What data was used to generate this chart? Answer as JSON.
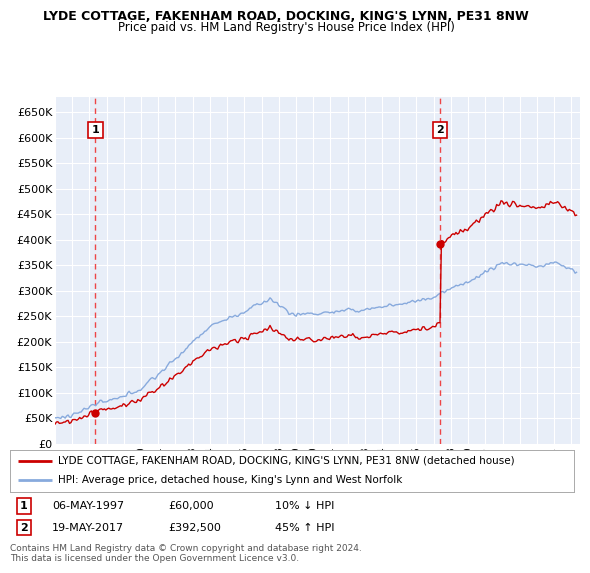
{
  "title1": "LYDE COTTAGE, FAKENHAM ROAD, DOCKING, KING'S LYNN, PE31 8NW",
  "title2": "Price paid vs. HM Land Registry's House Price Index (HPI)",
  "ylabel_ticks": [
    "£0",
    "£50K",
    "£100K",
    "£150K",
    "£200K",
    "£250K",
    "£300K",
    "£350K",
    "£400K",
    "£450K",
    "£500K",
    "£550K",
    "£600K",
    "£650K"
  ],
  "ytick_values": [
    0,
    50000,
    100000,
    150000,
    200000,
    250000,
    300000,
    350000,
    400000,
    450000,
    500000,
    550000,
    600000,
    650000
  ],
  "ylim": [
    0,
    680000
  ],
  "xmin": 1995.0,
  "xmax": 2025.5,
  "sale1_x": 1997.35,
  "sale1_y": 60000,
  "sale1_label": "1",
  "sale1_date": "06-MAY-1997",
  "sale1_price": "£60,000",
  "sale1_hpi": "10% ↓ HPI",
  "sale2_x": 2017.38,
  "sale2_y": 392500,
  "sale2_label": "2",
  "sale2_date": "19-MAY-2017",
  "sale2_price": "£392,500",
  "sale2_hpi": "45% ↑ HPI",
  "bg_color": "#ffffff",
  "plot_bg": "#e8eef8",
  "red_line_color": "#cc0000",
  "blue_line_color": "#88aadd",
  "vline_color": "#ee3333",
  "grid_color": "#ffffff",
  "legend_label1": "LYDE COTTAGE, FAKENHAM ROAD, DOCKING, KING'S LYNN, PE31 8NW (detached house)",
  "legend_label2": "HPI: Average price, detached house, King's Lynn and West Norfolk",
  "footnote": "Contains HM Land Registry data © Crown copyright and database right 2024.\nThis data is licensed under the Open Government Licence v3.0."
}
